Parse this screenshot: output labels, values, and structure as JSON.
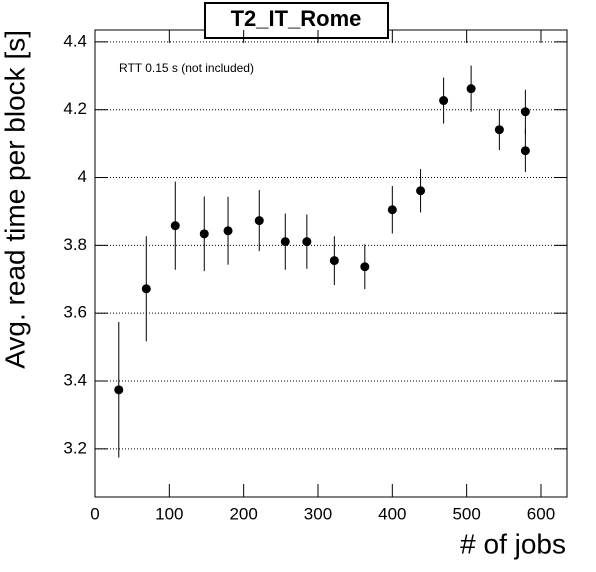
{
  "chart_data": {
    "type": "errorbar",
    "title": "T2_IT_Rome",
    "annotation": "RTT 0.15 s (not included)",
    "x_label": "# of jobs",
    "y_label": "Avg. read time per block [s]",
    "x": [
      32,
      69,
      108,
      147,
      179,
      221,
      256,
      285,
      322,
      363,
      400,
      438,
      469,
      506,
      544,
      579,
      579
    ],
    "values": [
      3.374,
      3.672,
      3.858,
      3.834,
      3.843,
      3.873,
      3.811,
      3.811,
      3.755,
      3.737,
      3.905,
      3.961,
      4.227,
      4.262,
      4.141,
      4.194,
      4.079
    ],
    "errors": [
      0.2,
      0.155,
      0.13,
      0.11,
      0.1,
      0.09,
      0.083,
      0.08,
      0.072,
      0.066,
      0.07,
      0.064,
      0.068,
      0.068,
      0.06,
      0.065,
      0.063
    ],
    "color": "#000000",
    "xlim": [
      0,
      635
    ],
    "xticks": [
      0,
      100,
      200,
      300,
      400,
      500,
      600
    ],
    "ylim": [
      3.058,
      4.435
    ],
    "yticks": [
      3.2,
      3.4,
      3.6,
      3.8,
      4,
      4.2,
      4.4
    ],
    "grid": true
  }
}
